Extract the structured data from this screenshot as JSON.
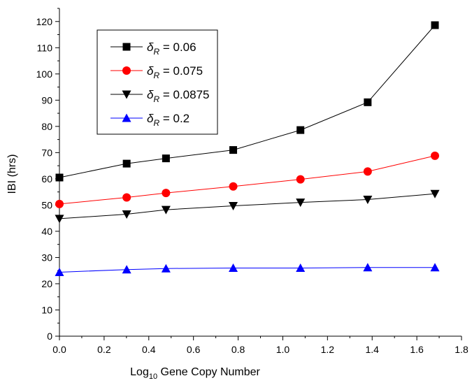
{
  "chart_data": {
    "type": "line",
    "xlabel_prefix": "Log",
    "xlabel_subscript": "10",
    "xlabel_suffix": " Gene Copy Number",
    "ylabel": "IBI (hrs)",
    "xlim": [
      0,
      1.8
    ],
    "ylim": [
      0,
      125
    ],
    "x_ticks": [
      "0.0",
      "0.2",
      "0.4",
      "0.6",
      "0.8",
      "1.0",
      "1.2",
      "1.4",
      "1.6",
      "1.8"
    ],
    "y_ticks": [
      "0",
      "10",
      "20",
      "30",
      "40",
      "50",
      "60",
      "70",
      "80",
      "90",
      "100",
      "110",
      "120"
    ],
    "grid": false,
    "legend_position": "top-left",
    "x": [
      0.0,
      0.301,
      0.477,
      0.778,
      1.079,
      1.38,
      1.681
    ],
    "series": [
      {
        "legend_symbol": "δ",
        "legend_subscript": "R",
        "legend_value": " = 0.06",
        "marker": "square",
        "color": "#000000",
        "values": [
          60.5,
          65.8,
          67.8,
          71.0,
          78.6,
          89.2,
          118.6
        ]
      },
      {
        "legend_symbol": "δ",
        "legend_subscript": "R",
        "legend_value": " = 0.075",
        "marker": "circle",
        "color": "#ff0000",
        "values": [
          50.4,
          52.9,
          54.6,
          57.1,
          59.8,
          62.8,
          68.8
        ]
      },
      {
        "legend_symbol": "δ",
        "legend_subscript": "R",
        "legend_value": " = 0.0875",
        "marker": "triangle-down",
        "color": "#000000",
        "values": [
          44.8,
          46.5,
          48.2,
          49.7,
          51.0,
          52.1,
          54.3
        ]
      },
      {
        "legend_symbol": "δ",
        "legend_subscript": "R",
        "legend_value": " = 0.2",
        "marker": "triangle-up",
        "color": "#0000ff",
        "values": [
          24.4,
          25.4,
          25.8,
          26.0,
          26.0,
          26.2,
          26.2
        ]
      }
    ]
  }
}
